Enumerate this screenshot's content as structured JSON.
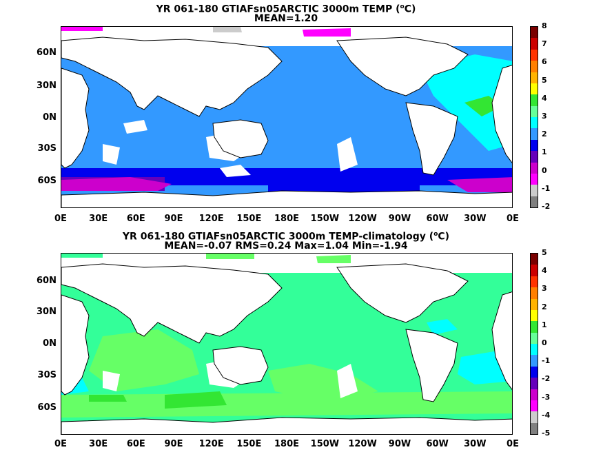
{
  "panel_top": {
    "title_line1": "YR 061-180 GTIAFsn05ARCTIC 3000m TEMP (",
    "title_unit": "C)",
    "title_line2": "MEAN=1.20",
    "colorbar_labels": [
      "8",
      "7",
      "6",
      "5",
      "4",
      "3",
      "2",
      "1",
      "0",
      "-1",
      "-2"
    ]
  },
  "panel_bottom": {
    "title_line1": "YR 061-180 GTIAFsn05ARCTIC 3000m TEMP-climatology (",
    "title_unit": "C)",
    "title_line2": "MEAN=-0.07   RMS=0.24   Max=1.04   Min=-1.94",
    "colorbar_labels": [
      "5",
      "4",
      "3",
      "2",
      "1",
      "0",
      "-1",
      "-2",
      "-3",
      "-4",
      "-5"
    ]
  },
  "degree_symbol": "o",
  "lat_labels": [
    "60N",
    "30N",
    "0N",
    "30S",
    "60S"
  ],
  "lon_labels": [
    "0E",
    "30E",
    "60E",
    "90E",
    "120E",
    "150E",
    "180E",
    "150W",
    "120W",
    "90W",
    "60W",
    "30W",
    "0E"
  ],
  "colors": {
    "palette": [
      "#7a0000",
      "#cc0000",
      "#ff3300",
      "#ff7f00",
      "#ffb300",
      "#ffff00",
      "#33e633",
      "#66ff99",
      "#00ffff",
      "#3399ff",
      "#0000ee",
      "#6600bb",
      "#cc00cc",
      "#ff00ff",
      "#cccccc",
      "#808080"
    ],
    "top_dominant": "#3399ff",
    "bottom_dominant": "#33ff99"
  }
}
